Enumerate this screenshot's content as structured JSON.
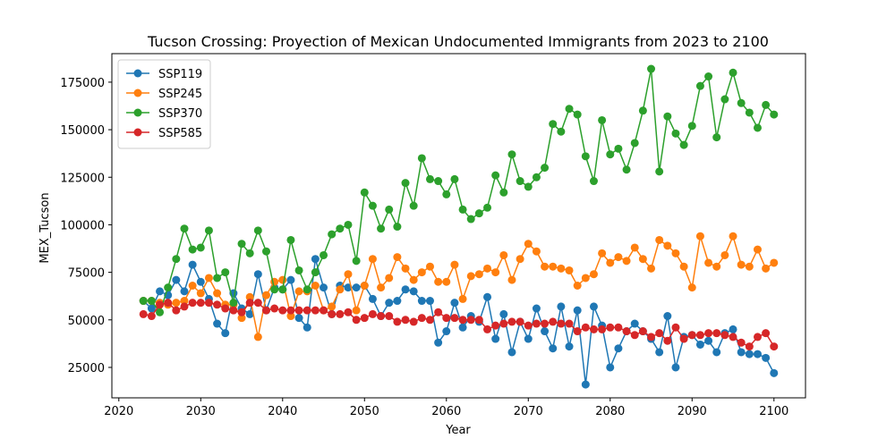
{
  "chart_data": {
    "type": "line",
    "title": "Tucson Crossing: Proyection of Mexican Undocumented Immigrants from 2023 to 2100",
    "xlabel": "Year",
    "ylabel": "MEX_Tucson",
    "xlim": [
      2019.15,
      2103.85
    ],
    "ylim": [
      9000,
      190000
    ],
    "xticks": [
      2020,
      2030,
      2040,
      2050,
      2060,
      2070,
      2080,
      2090,
      2100
    ],
    "yticks": [
      25000,
      50000,
      75000,
      100000,
      125000,
      150000,
      175000
    ],
    "ytick_labels": [
      "25000",
      "50000",
      "75000",
      "100000",
      "125000",
      "150000",
      "175000"
    ],
    "grid": false,
    "legend_placement": "upper-left",
    "x": [
      2023,
      2024,
      2025,
      2026,
      2027,
      2028,
      2029,
      2030,
      2031,
      2032,
      2033,
      2034,
      2035,
      2036,
      2037,
      2038,
      2039,
      2040,
      2041,
      2042,
      2043,
      2044,
      2045,
      2046,
      2047,
      2048,
      2049,
      2050,
      2051,
      2052,
      2053,
      2054,
      2055,
      2056,
      2057,
      2058,
      2059,
      2060,
      2061,
      2062,
      2063,
      2064,
      2065,
      2066,
      2067,
      2068,
      2069,
      2070,
      2071,
      2072,
      2073,
      2074,
      2075,
      2076,
      2077,
      2078,
      2079,
      2080,
      2081,
      2082,
      2083,
      2084,
      2085,
      2086,
      2087,
      2088,
      2089,
      2090,
      2091,
      2092,
      2093,
      2094,
      2095,
      2096,
      2097,
      2098,
      2099,
      2100
    ],
    "series": [
      {
        "name": "SSP119",
        "color": "#1f77b4",
        "values": [
          60000,
          56000,
          65000,
          63000,
          71000,
          65000,
          79000,
          70000,
          61000,
          48000,
          43000,
          64000,
          56000,
          53000,
          74000,
          55000,
          67000,
          66000,
          71000,
          51000,
          46000,
          82000,
          67000,
          53000,
          68000,
          67000,
          67000,
          68000,
          61000,
          52000,
          59000,
          60000,
          66000,
          65000,
          60000,
          60000,
          38000,
          44000,
          59000,
          46000,
          52000,
          49000,
          62000,
          40000,
          53000,
          33000,
          49000,
          40000,
          56000,
          44000,
          35000,
          57000,
          36000,
          55000,
          16000,
          57000,
          47000,
          25000,
          35000,
          44000,
          48000,
          44000,
          40000,
          33000,
          52000,
          25000,
          41000,
          42000,
          37000,
          39000,
          33000,
          43000,
          45000,
          33000,
          32000,
          32000,
          30000,
          22000
        ]
      },
      {
        "name": "SSP245",
        "color": "#ff7f0e",
        "values": [
          60000,
          60000,
          59000,
          58000,
          59000,
          60000,
          68000,
          64000,
          72000,
          64000,
          58000,
          58000,
          51000,
          62000,
          41000,
          63000,
          70000,
          71000,
          52000,
          65000,
          65000,
          68000,
          55000,
          57000,
          66000,
          74000,
          55000,
          68000,
          82000,
          67000,
          72000,
          83000,
          77000,
          71000,
          75000,
          78000,
          70000,
          70000,
          79000,
          61000,
          73000,
          74000,
          77000,
          75000,
          84000,
          71000,
          82000,
          90000,
          86000,
          78000,
          78000,
          77000,
          76000,
          68000,
          72000,
          74000,
          85000,
          80000,
          83000,
          81000,
          88000,
          82000,
          77000,
          92000,
          89000,
          85000,
          78000,
          67000,
          94000,
          80000,
          78000,
          84000,
          94000,
          79000,
          78000,
          87000,
          77000,
          80000
        ]
      },
      {
        "name": "SSP370",
        "color": "#2ca02c",
        "values": [
          60000,
          60000,
          54000,
          67000,
          82000,
          98000,
          87000,
          88000,
          97000,
          72000,
          75000,
          59000,
          90000,
          85000,
          97000,
          86000,
          66000,
          66000,
          92000,
          76000,
          66000,
          75000,
          84000,
          95000,
          98000,
          100000,
          81000,
          117000,
          110000,
          98000,
          108000,
          99000,
          122000,
          110000,
          135000,
          124000,
          123000,
          116000,
          124000,
          108000,
          103000,
          106000,
          109000,
          126000,
          117000,
          137000,
          123000,
          120000,
          125000,
          130000,
          153000,
          149000,
          161000,
          158000,
          136000,
          123000,
          155000,
          137000,
          140000,
          129000,
          143000,
          160000,
          182000,
          128000,
          157000,
          148000,
          142000,
          152000,
          173000,
          178000,
          146000,
          166000,
          180000,
          164000,
          159000,
          151000,
          163000,
          158000
        ]
      },
      {
        "name": "SSP585",
        "color": "#d62728",
        "values": [
          53000,
          52000,
          58000,
          59000,
          55000,
          57000,
          59000,
          59000,
          59000,
          58000,
          56000,
          55000,
          54000,
          59000,
          59000,
          55000,
          56000,
          55000,
          55000,
          55000,
          55000,
          55000,
          55000,
          53000,
          53000,
          54000,
          50000,
          51000,
          53000,
          52000,
          52000,
          49000,
          50000,
          49000,
          51000,
          50000,
          54000,
          51000,
          51000,
          50000,
          50000,
          50000,
          45000,
          47000,
          48000,
          49000,
          49000,
          47000,
          48000,
          48000,
          49000,
          48000,
          48000,
          44000,
          46000,
          45000,
          45000,
          46000,
          46000,
          44000,
          42000,
          44000,
          41000,
          43000,
          39000,
          46000,
          40000,
          42000,
          42000,
          43000,
          43000,
          42000,
          41000,
          38000,
          36000,
          41000,
          43000,
          36000
        ]
      }
    ]
  }
}
